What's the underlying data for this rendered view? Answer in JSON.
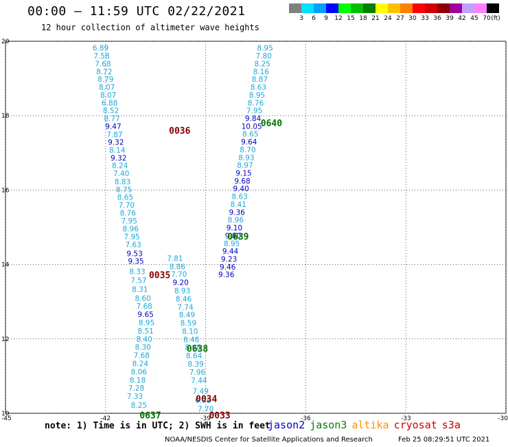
{
  "title": "00:00 – 11:59 UTC 02/22/2021",
  "subtitle": "12 hour collection of altimeter wave heights",
  "legend": {
    "unit_label": "(ft)",
    "entries": [
      {
        "label": "3",
        "color": "#808080"
      },
      {
        "label": "6",
        "color": "#00e0ff"
      },
      {
        "label": "9",
        "color": "#00a0ff"
      },
      {
        "label": "12",
        "color": "#0000ff"
      },
      {
        "label": "15",
        "color": "#00ff00"
      },
      {
        "label": "18",
        "color": "#00c000"
      },
      {
        "label": "21",
        "color": "#008000"
      },
      {
        "label": "24",
        "color": "#ffff00"
      },
      {
        "label": "27",
        "color": "#ffc000"
      },
      {
        "label": "30",
        "color": "#ff8000"
      },
      {
        "label": "33",
        "color": "#ff0000"
      },
      {
        "label": "36",
        "color": "#d00000"
      },
      {
        "label": "39",
        "color": "#900000"
      },
      {
        "label": "42",
        "color": "#a000a0"
      },
      {
        "label": "45",
        "color": "#c0a0ff"
      },
      {
        "label": "70",
        "color": "#ff80ff"
      },
      {
        "label": "",
        "color": "#000000"
      }
    ]
  },
  "chart_data": {
    "type": "scatter",
    "xlim": [
      -45,
      -30
    ],
    "ylim": [
      10,
      20
    ],
    "x_ticks": [
      "-45",
      "-42",
      "-39",
      "-36",
      "-33",
      "-30"
    ],
    "y_ticks": [
      "10",
      "12",
      "14",
      "16",
      "18",
      "20"
    ],
    "grid": true,
    "colors": {
      "low": "#1ca8d8",
      "mid": "#0000c0"
    },
    "tracks": [
      {
        "name": "left",
        "points": [
          {
            "lon": -42.15,
            "lat": 19.82,
            "swh": "6.89"
          },
          {
            "lon": -42.12,
            "lat": 19.61,
            "swh": "7.58"
          },
          {
            "lon": -42.08,
            "lat": 19.4,
            "swh": "7.68"
          },
          {
            "lon": -42.04,
            "lat": 19.19,
            "swh": "8.72"
          },
          {
            "lon": -42.0,
            "lat": 18.98,
            "swh": "8.79"
          },
          {
            "lon": -41.96,
            "lat": 18.77,
            "swh": "8.07"
          },
          {
            "lon": -41.92,
            "lat": 18.56,
            "swh": "8.07"
          },
          {
            "lon": -41.88,
            "lat": 18.35,
            "swh": "6.88"
          },
          {
            "lon": -41.84,
            "lat": 18.14,
            "swh": "8.52"
          },
          {
            "lon": -41.81,
            "lat": 17.93,
            "swh": "8.77"
          },
          {
            "lon": -41.77,
            "lat": 17.72,
            "swh": "9.47"
          },
          {
            "lon": -41.73,
            "lat": 17.5,
            "swh": "7.87"
          },
          {
            "lon": -41.69,
            "lat": 17.29,
            "swh": "9.32"
          },
          {
            "lon": -41.65,
            "lat": 17.08,
            "swh": "8.14"
          },
          {
            "lon": -41.61,
            "lat": 16.87,
            "swh": "9.32"
          },
          {
            "lon": -41.57,
            "lat": 16.66,
            "swh": "8.24"
          },
          {
            "lon": -41.53,
            "lat": 16.45,
            "swh": "7.40"
          },
          {
            "lon": -41.49,
            "lat": 16.23,
            "swh": "8.83"
          },
          {
            "lon": -41.45,
            "lat": 16.02,
            "swh": "8.75"
          },
          {
            "lon": -41.41,
            "lat": 15.81,
            "swh": "8.65"
          },
          {
            "lon": -41.37,
            "lat": 15.6,
            "swh": "7.70"
          },
          {
            "lon": -41.33,
            "lat": 15.39,
            "swh": "8.76"
          },
          {
            "lon": -41.29,
            "lat": 15.18,
            "swh": "7.95"
          },
          {
            "lon": -41.25,
            "lat": 14.96,
            "swh": "8.96"
          },
          {
            "lon": -41.21,
            "lat": 14.75,
            "swh": "7.95"
          },
          {
            "lon": -41.17,
            "lat": 14.54,
            "swh": "7.63"
          },
          {
            "lon": -41.13,
            "lat": 14.3,
            "swh": "9.53"
          },
          {
            "lon": -41.09,
            "lat": 14.09,
            "swh": "9.35"
          },
          {
            "lon": -41.05,
            "lat": 13.82,
            "swh": "8.33"
          },
          {
            "lon": -41.01,
            "lat": 13.58,
            "swh": "7.57"
          },
          {
            "lon": -40.97,
            "lat": 13.34,
            "swh": "8.31"
          },
          {
            "lon": -40.88,
            "lat": 13.1,
            "swh": "8.60"
          },
          {
            "lon": -40.84,
            "lat": 12.88,
            "swh": "7.68"
          },
          {
            "lon": -40.8,
            "lat": 12.66,
            "swh": "9.65"
          },
          {
            "lon": -40.77,
            "lat": 12.44,
            "swh": "8.95"
          },
          {
            "lon": -40.8,
            "lat": 12.22,
            "swh": "8.51"
          },
          {
            "lon": -40.84,
            "lat": 12.0,
            "swh": "8.40"
          },
          {
            "lon": -40.88,
            "lat": 11.78,
            "swh": "8.30"
          },
          {
            "lon": -40.92,
            "lat": 11.56,
            "swh": "7.68"
          },
          {
            "lon": -40.96,
            "lat": 11.34,
            "swh": "8.24"
          },
          {
            "lon": -41.0,
            "lat": 11.12,
            "swh": "8.06"
          },
          {
            "lon": -41.04,
            "lat": 10.9,
            "swh": "8.18"
          },
          {
            "lon": -41.08,
            "lat": 10.68,
            "swh": "7.28"
          },
          {
            "lon": -41.12,
            "lat": 10.46,
            "swh": "7.33"
          },
          {
            "lon": -41.0,
            "lat": 10.22,
            "swh": "8.25"
          }
        ]
      },
      {
        "name": "middle",
        "points": [
          {
            "lon": -39.92,
            "lat": 14.17,
            "swh": "7.81"
          },
          {
            "lon": -39.85,
            "lat": 13.95,
            "swh": "8.86"
          },
          {
            "lon": -39.8,
            "lat": 13.74,
            "swh": "7.70"
          },
          {
            "lon": -39.75,
            "lat": 13.52,
            "swh": "9.20"
          },
          {
            "lon": -39.7,
            "lat": 13.3,
            "swh": "8.93"
          },
          {
            "lon": -39.66,
            "lat": 13.08,
            "swh": "8.46"
          },
          {
            "lon": -39.61,
            "lat": 12.86,
            "swh": "7.74"
          },
          {
            "lon": -39.56,
            "lat": 12.65,
            "swh": "8.49"
          },
          {
            "lon": -39.52,
            "lat": 12.43,
            "swh": "8.59"
          },
          {
            "lon": -39.47,
            "lat": 12.21,
            "swh": "8.10"
          },
          {
            "lon": -39.43,
            "lat": 11.99,
            "swh": "8.48"
          },
          {
            "lon": -39.38,
            "lat": 11.77,
            "swh": "8.98"
          },
          {
            "lon": -39.35,
            "lat": 11.55,
            "swh": "8.64"
          },
          {
            "lon": -39.3,
            "lat": 11.33,
            "swh": "8.39"
          },
          {
            "lon": -39.25,
            "lat": 11.11,
            "swh": "7.96"
          },
          {
            "lon": -39.2,
            "lat": 10.89,
            "swh": "7.44"
          },
          {
            "lon": -39.15,
            "lat": 10.6,
            "swh": "7.49"
          },
          {
            "lon": -39.08,
            "lat": 10.35,
            "swh": "6.98"
          },
          {
            "lon": -39.0,
            "lat": 10.12,
            "swh": "7.70"
          }
        ]
      },
      {
        "name": "right",
        "points": [
          {
            "lon": -37.22,
            "lat": 19.82,
            "swh": "8.95"
          },
          {
            "lon": -37.26,
            "lat": 19.61,
            "swh": "7.80"
          },
          {
            "lon": -37.3,
            "lat": 19.4,
            "swh": "8.25"
          },
          {
            "lon": -37.34,
            "lat": 19.19,
            "swh": "8.16"
          },
          {
            "lon": -37.38,
            "lat": 18.98,
            "swh": "8.87"
          },
          {
            "lon": -37.42,
            "lat": 18.77,
            "swh": "8.63"
          },
          {
            "lon": -37.46,
            "lat": 18.56,
            "swh": "8.95"
          },
          {
            "lon": -37.5,
            "lat": 18.35,
            "swh": "8.76"
          },
          {
            "lon": -37.54,
            "lat": 18.14,
            "swh": "7.95"
          },
          {
            "lon": -37.58,
            "lat": 17.93,
            "swh": "9.84"
          },
          {
            "lon": -37.62,
            "lat": 17.72,
            "swh": "10.05"
          },
          {
            "lon": -37.66,
            "lat": 17.51,
            "swh": "8.65"
          },
          {
            "lon": -37.7,
            "lat": 17.3,
            "swh": "9.64"
          },
          {
            "lon": -37.74,
            "lat": 17.09,
            "swh": "8.70"
          },
          {
            "lon": -37.78,
            "lat": 16.88,
            "swh": "8.93"
          },
          {
            "lon": -37.82,
            "lat": 16.67,
            "swh": "8.97"
          },
          {
            "lon": -37.86,
            "lat": 16.46,
            "swh": "9.15"
          },
          {
            "lon": -37.9,
            "lat": 16.25,
            "swh": "9.68"
          },
          {
            "lon": -37.94,
            "lat": 16.04,
            "swh": "9.40"
          },
          {
            "lon": -37.98,
            "lat": 15.83,
            "swh": "8.63"
          },
          {
            "lon": -38.02,
            "lat": 15.62,
            "swh": "8.41"
          },
          {
            "lon": -38.06,
            "lat": 15.41,
            "swh": "9.36"
          },
          {
            "lon": -38.1,
            "lat": 15.2,
            "swh": "8.96"
          },
          {
            "lon": -38.14,
            "lat": 14.99,
            "swh": "9.10"
          },
          {
            "lon": -38.18,
            "lat": 14.78,
            "swh": "9.80"
          },
          {
            "lon": -38.22,
            "lat": 14.57,
            "swh": "8.95"
          },
          {
            "lon": -38.26,
            "lat": 14.36,
            "swh": "9.44"
          },
          {
            "lon": -38.3,
            "lat": 14.15,
            "swh": "9.23"
          },
          {
            "lon": -38.34,
            "lat": 13.94,
            "swh": "9.46"
          },
          {
            "lon": -38.38,
            "lat": 13.73,
            "swh": "9.36"
          }
        ]
      }
    ],
    "annotations": [
      {
        "text": "0036",
        "lon": -40.1,
        "lat": 17.61,
        "color": "#800000"
      },
      {
        "text": "0640",
        "lon": -37.35,
        "lat": 17.81,
        "color": "#007000"
      },
      {
        "text": "0639",
        "lon": -38.35,
        "lat": 14.76,
        "color": "#007000"
      },
      {
        "text": "0035",
        "lon": -40.7,
        "lat": 13.72,
        "color": "#800000"
      },
      {
        "text": "0638",
        "lon": -39.57,
        "lat": 11.75,
        "color": "#007000"
      },
      {
        "text": "0034",
        "lon": -39.3,
        "lat": 10.4,
        "color": "#800000"
      },
      {
        "text": "0637",
        "lon": -40.98,
        "lat": 9.95,
        "color": "#007000"
      },
      {
        "text": "0033",
        "lon": -38.9,
        "lat": 9.95,
        "color": "#800000"
      }
    ]
  },
  "note": "note: 1) Time is in UTC; 2) SWH is in feet",
  "satellites": [
    {
      "name": "jason2",
      "color": "#0000d0"
    },
    {
      "name": "jason3",
      "color": "#008000"
    },
    {
      "name": "altika",
      "color": "#ff9000"
    },
    {
      "name": "cryosat",
      "color": "#d00000"
    },
    {
      "name": "s3a",
      "color": "#c00000"
    }
  ],
  "footer_left": "NOAA/NESDIS Center for Satellite Applications and Research",
  "footer_right": "Feb 25 08:29:51 UTC 2021"
}
